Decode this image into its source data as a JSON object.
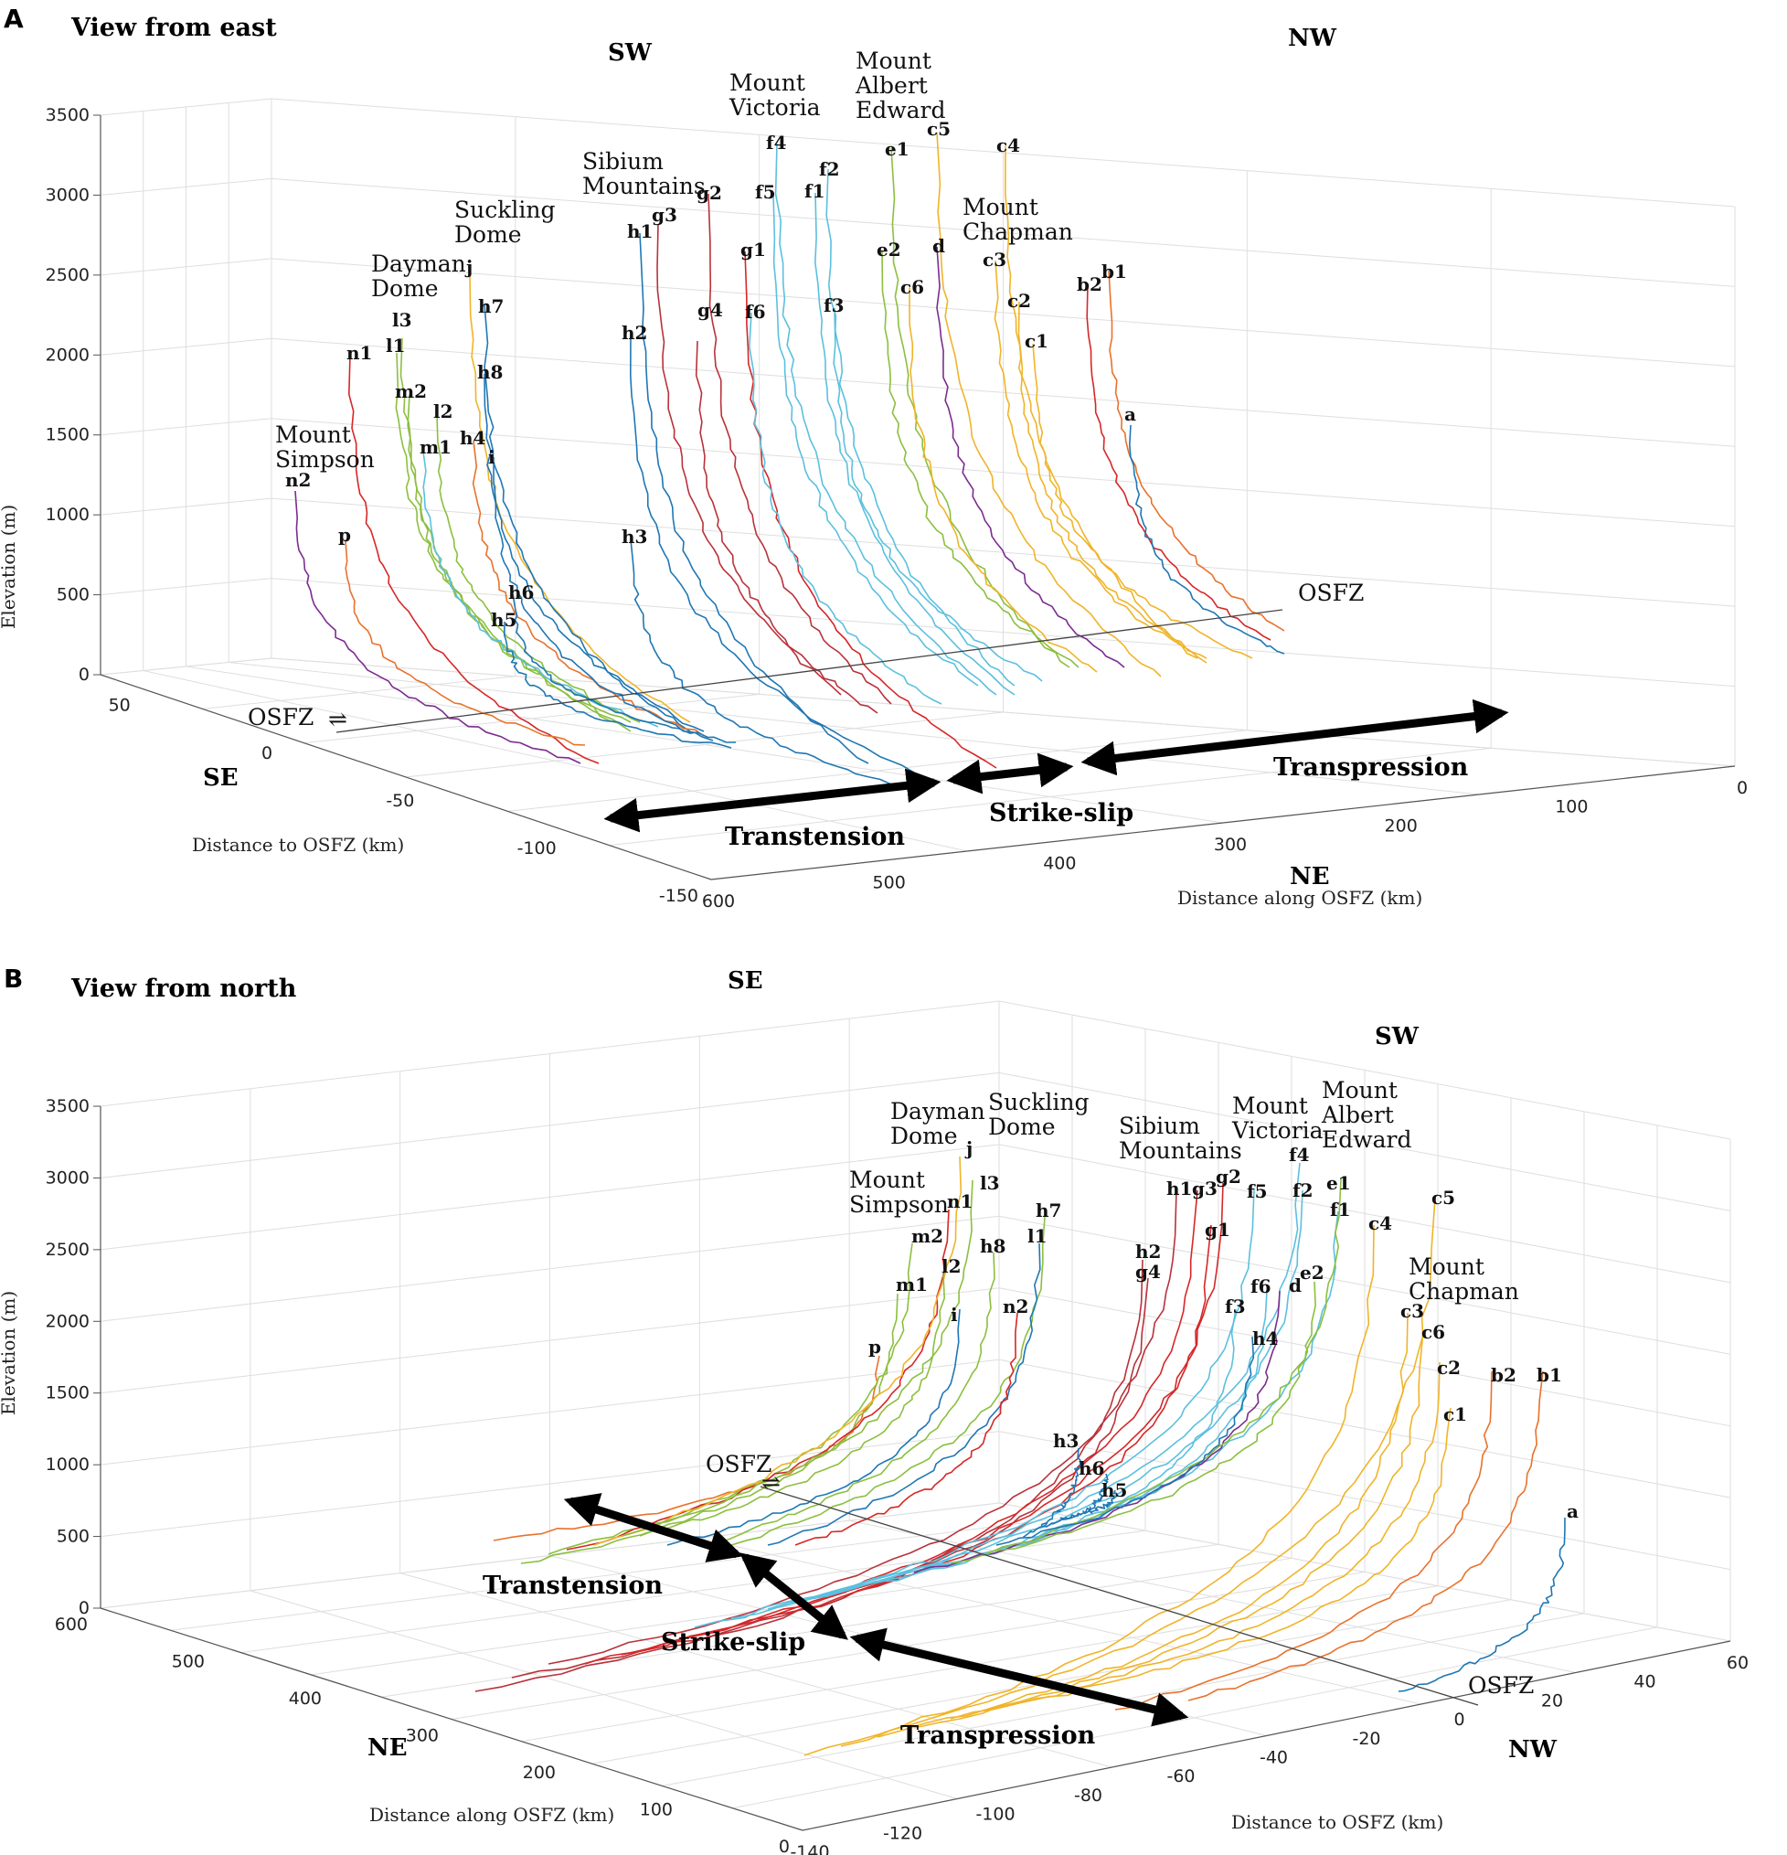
{
  "colors": {
    "palette": [
      "#1f77b4",
      "#d62728",
      "#f0b429",
      "#7b2d8e",
      "#8cbf3f",
      "#5bc0de",
      "#e8722c",
      "#b8323a"
    ],
    "arrow": "#000000"
  },
  "chart_data": [
    {
      "type": "line3d",
      "panel": "A",
      "title": "View from east",
      "ylabel": "Elevation (m)",
      "xlabel_left": "Distance to OSFZ (km)",
      "xlabel_right": "Distance along OSFZ (km)",
      "z_ticks": [
        "0",
        "500",
        "1000",
        "1500",
        "2000",
        "2500",
        "3000",
        "3500"
      ],
      "left_ticks": [
        "50",
        "0",
        "-50",
        "-100",
        "-150"
      ],
      "right_ticks": [
        "600",
        "500",
        "400",
        "300",
        "200",
        "100",
        "0"
      ],
      "directions": {
        "sw": "SW",
        "nw": "NW",
        "se": "SE",
        "ne": "NE"
      },
      "osfz": "OSFZ",
      "regimes": {
        "transtension": "Transtension",
        "strikeslip": "Strike-slip",
        "transpression": "Transpression"
      },
      "places": [
        {
          "lines": [
            "Mount",
            "Simpson"
          ]
        },
        {
          "lines": [
            "Dayman",
            "Dome"
          ]
        },
        {
          "lines": [
            "Suckling",
            "Dome"
          ]
        },
        {
          "lines": [
            "Sibium",
            "Mountains"
          ]
        },
        {
          "lines": [
            "Mount",
            "Victoria"
          ]
        },
        {
          "lines": [
            "Mount",
            "Albert",
            "Edward"
          ]
        },
        {
          "lines": [
            "Mount",
            "Chapman"
          ]
        }
      ],
      "profiles": [
        {
          "id": "n2",
          "color": 3,
          "peak": 1480
        },
        {
          "id": "n1",
          "color": 1,
          "peak": 1950
        },
        {
          "id": "p",
          "color": 6,
          "peak": 850
        },
        {
          "id": "l3",
          "color": 4,
          "peak": 2150
        },
        {
          "id": "l1",
          "color": 4,
          "peak": 2000
        },
        {
          "id": "m2",
          "color": 4,
          "peak": 1760
        },
        {
          "id": "l2",
          "color": 4,
          "peak": 1640
        },
        {
          "id": "m1",
          "color": 5,
          "peak": 1440
        },
        {
          "id": "j",
          "color": 2,
          "peak": 2570
        },
        {
          "id": "h7",
          "color": 0,
          "peak": 2420
        },
        {
          "id": "h8",
          "color": 0,
          "peak": 2060
        },
        {
          "id": "h4",
          "color": 6,
          "peak": 1480
        },
        {
          "id": "i",
          "color": 0,
          "peak": 1380
        },
        {
          "id": "h6",
          "color": 0,
          "peak": 550
        },
        {
          "id": "h5",
          "color": 0,
          "peak": 370
        },
        {
          "id": "h1",
          "color": 0,
          "peak": 2780
        },
        {
          "id": "h2",
          "color": 0,
          "peak": 2250
        },
        {
          "id": "h3",
          "color": 0,
          "peak": 1070
        },
        {
          "id": "g3",
          "color": 7,
          "peak": 2880
        },
        {
          "id": "g2",
          "color": 7,
          "peak": 2970
        },
        {
          "id": "g4",
          "color": 7,
          "peak": 2330
        },
        {
          "id": "g1",
          "color": 1,
          "peak": 2560
        },
        {
          "id": "f4",
          "color": 5,
          "peak": 3440
        },
        {
          "id": "f5",
          "color": 5,
          "peak": 3150
        },
        {
          "id": "f2",
          "color": 5,
          "peak": 3250
        },
        {
          "id": "f1",
          "color": 5,
          "peak": 3090
        },
        {
          "id": "f6",
          "color": 5,
          "peak": 2340
        },
        {
          "id": "f3",
          "color": 5,
          "peak": 2400
        },
        {
          "id": "e1",
          "color": 4,
          "peak": 3430
        },
        {
          "id": "e2",
          "color": 4,
          "peak": 2670
        },
        {
          "id": "c5",
          "color": 2,
          "peak": 3560
        },
        {
          "id": "c6",
          "color": 2,
          "peak": 2600
        },
        {
          "id": "d",
          "color": 3,
          "peak": 2660
        },
        {
          "id": "c4",
          "color": 2,
          "peak": 3420
        },
        {
          "id": "c3",
          "color": 2,
          "peak": 2710
        },
        {
          "id": "c2",
          "color": 2,
          "peak": 2510
        },
        {
          "id": "c1",
          "color": 2,
          "peak": 2230
        },
        {
          "id": "b2",
          "color": 1,
          "peak": 2530
        },
        {
          "id": "b1",
          "color": 6,
          "peak": 2520
        },
        {
          "id": "a",
          "color": 0,
          "peak": 1570
        }
      ]
    },
    {
      "type": "line3d",
      "panel": "B",
      "title": "View from north",
      "ylabel": "Elevation (m)",
      "xlabel_left": "Distance along OSFZ (km)",
      "xlabel_right": "Distance to OSFZ (km)",
      "z_ticks": [
        "0",
        "500",
        "1000",
        "1500",
        "2000",
        "2500",
        "3000",
        "3500"
      ],
      "left_ticks": [
        "600",
        "500",
        "400",
        "300",
        "200",
        "100",
        "0"
      ],
      "right_ticks": [
        "-140",
        "-120",
        "-100",
        "-80",
        "-60",
        "-40",
        "-20",
        "0",
        "20",
        "40",
        "60"
      ],
      "directions": {
        "se": "SE",
        "sw": "SW",
        "ne": "NE",
        "nw": "NW"
      },
      "osfz": "OSFZ",
      "regimes": {
        "transtension": "Transtension",
        "strikeslip": "Strike-slip",
        "transpression": "Transpression"
      },
      "places": [
        {
          "lines": [
            "Dayman",
            "Dome"
          ]
        },
        {
          "lines": [
            "Suckling",
            "Dome"
          ]
        },
        {
          "lines": [
            "Mount",
            "Simpson"
          ]
        },
        {
          "lines": [
            "Sibium",
            "Mountains"
          ]
        },
        {
          "lines": [
            "Mount",
            "Victoria"
          ]
        },
        {
          "lines": [
            "Mount",
            "Albert",
            "Edward"
          ]
        },
        {
          "lines": [
            "Mount",
            "Chapman"
          ]
        }
      ],
      "profiles": [
        {
          "id": "p",
          "color": 6,
          "peak": 1580
        },
        {
          "id": "m1",
          "color": 4,
          "peak": 1980
        },
        {
          "id": "m2",
          "color": 4,
          "peak": 2340
        },
        {
          "id": "n1",
          "color": 1,
          "peak": 2830
        },
        {
          "id": "j",
          "color": 2,
          "peak": 3140
        },
        {
          "id": "l3",
          "color": 4,
          "peak": 2900
        },
        {
          "id": "l2",
          "color": 4,
          "peak": 2170
        },
        {
          "id": "i",
          "color": 0,
          "peak": 1900
        },
        {
          "id": "h8",
          "color": 4,
          "peak": 2350
        },
        {
          "id": "h7",
          "color": 4,
          "peak": 2960
        },
        {
          "id": "l1",
          "color": 0,
          "peak": 2700
        },
        {
          "id": "n2",
          "color": 1,
          "peak": 2090
        },
        {
          "id": "h2",
          "color": 7,
          "peak": 2420
        },
        {
          "id": "g4",
          "color": 7,
          "peak": 2360
        },
        {
          "id": "h1",
          "color": 7,
          "peak": 2950
        },
        {
          "id": "g3",
          "color": 1,
          "peak": 2960
        },
        {
          "id": "g2",
          "color": 1,
          "peak": 3060
        },
        {
          "id": "g1",
          "color": 1,
          "peak": 2650
        },
        {
          "id": "f5",
          "color": 5,
          "peak": 2950
        },
        {
          "id": "f4",
          "color": 5,
          "peak": 3240
        },
        {
          "id": "f2",
          "color": 5,
          "peak": 3000
        },
        {
          "id": "f1",
          "color": 5,
          "peak": 2850
        },
        {
          "id": "f6",
          "color": 5,
          "peak": 2130
        },
        {
          "id": "f3",
          "color": 5,
          "peak": 2000
        },
        {
          "id": "d",
          "color": 3,
          "peak": 2120
        },
        {
          "id": "e2",
          "color": 4,
          "peak": 2270
        },
        {
          "id": "e1",
          "color": 4,
          "peak": 3020
        },
        {
          "id": "h4",
          "color": 0,
          "peak": 1680
        },
        {
          "id": "h3",
          "color": 0,
          "peak": 920
        },
        {
          "id": "h6",
          "color": 0,
          "peak": 740
        },
        {
          "id": "h5",
          "color": 0,
          "peak": 640
        },
        {
          "id": "c4",
          "color": 2,
          "peak": 2880
        },
        {
          "id": "c5",
          "color": 2,
          "peak": 2950
        },
        {
          "id": "c3",
          "color": 2,
          "peak": 1980
        },
        {
          "id": "c6",
          "color": 2,
          "peak": 1850
        },
        {
          "id": "c2",
          "color": 2,
          "peak": 1660
        },
        {
          "id": "c1",
          "color": 2,
          "peak": 1400
        },
        {
          "id": "b2",
          "color": 6,
          "peak": 1570
        },
        {
          "id": "b1",
          "color": 6,
          "peak": 1570
        },
        {
          "id": "a",
          "color": 0,
          "peak": 670
        }
      ]
    }
  ]
}
